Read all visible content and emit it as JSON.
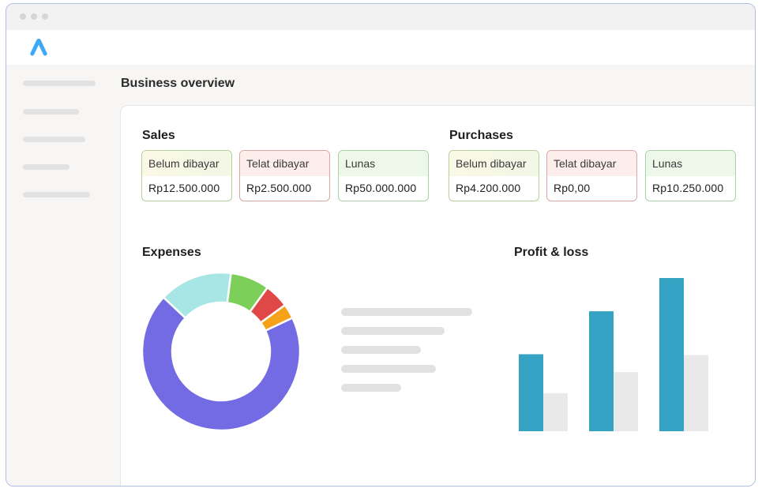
{
  "header": {
    "title": "Business overview"
  },
  "sales": {
    "title": "Sales",
    "cards": [
      {
        "label": "Belum dibayar",
        "value": "Rp12.500.000",
        "tone": "yellow"
      },
      {
        "label": "Telat dibayar",
        "value": "Rp2.500.000",
        "tone": "red"
      },
      {
        "label": "Lunas",
        "value": "Rp50.000.000",
        "tone": "green"
      }
    ]
  },
  "purchases": {
    "title": "Purchases",
    "cards": [
      {
        "label": "Belum dibayar",
        "value": "Rp4.200.000",
        "tone": "yellow"
      },
      {
        "label": "Telat dibayar",
        "value": "Rp0,00",
        "tone": "red"
      },
      {
        "label": "Lunas",
        "value": "Rp10.250.000",
        "tone": "green"
      }
    ]
  },
  "expenses": {
    "title": "Expenses",
    "chart_data": {
      "type": "pie",
      "slices": [
        {
          "value": 69,
          "color": "#736be3"
        },
        {
          "value": 15,
          "color": "#a7e6e4"
        },
        {
          "value": 8,
          "color": "#7ccf58"
        },
        {
          "value": 5,
          "color": "#e04848"
        },
        {
          "value": 3,
          "color": "#f5a11a"
        }
      ]
    }
  },
  "profit_loss": {
    "title": "Profit & loss",
    "chart_data": {
      "type": "bar",
      "categories": [
        "",
        "",
        ""
      ],
      "series": [
        {
          "values": [
            95,
            148,
            189
          ],
          "color": "#35a3c3"
        },
        {
          "values": [
            47,
            73,
            94
          ],
          "color": "#e9e9e9"
        }
      ],
      "ylim": [
        0,
        190
      ]
    }
  },
  "colors": {
    "accent_logo": "#3aa9f6",
    "window_border": "#aebde0"
  }
}
